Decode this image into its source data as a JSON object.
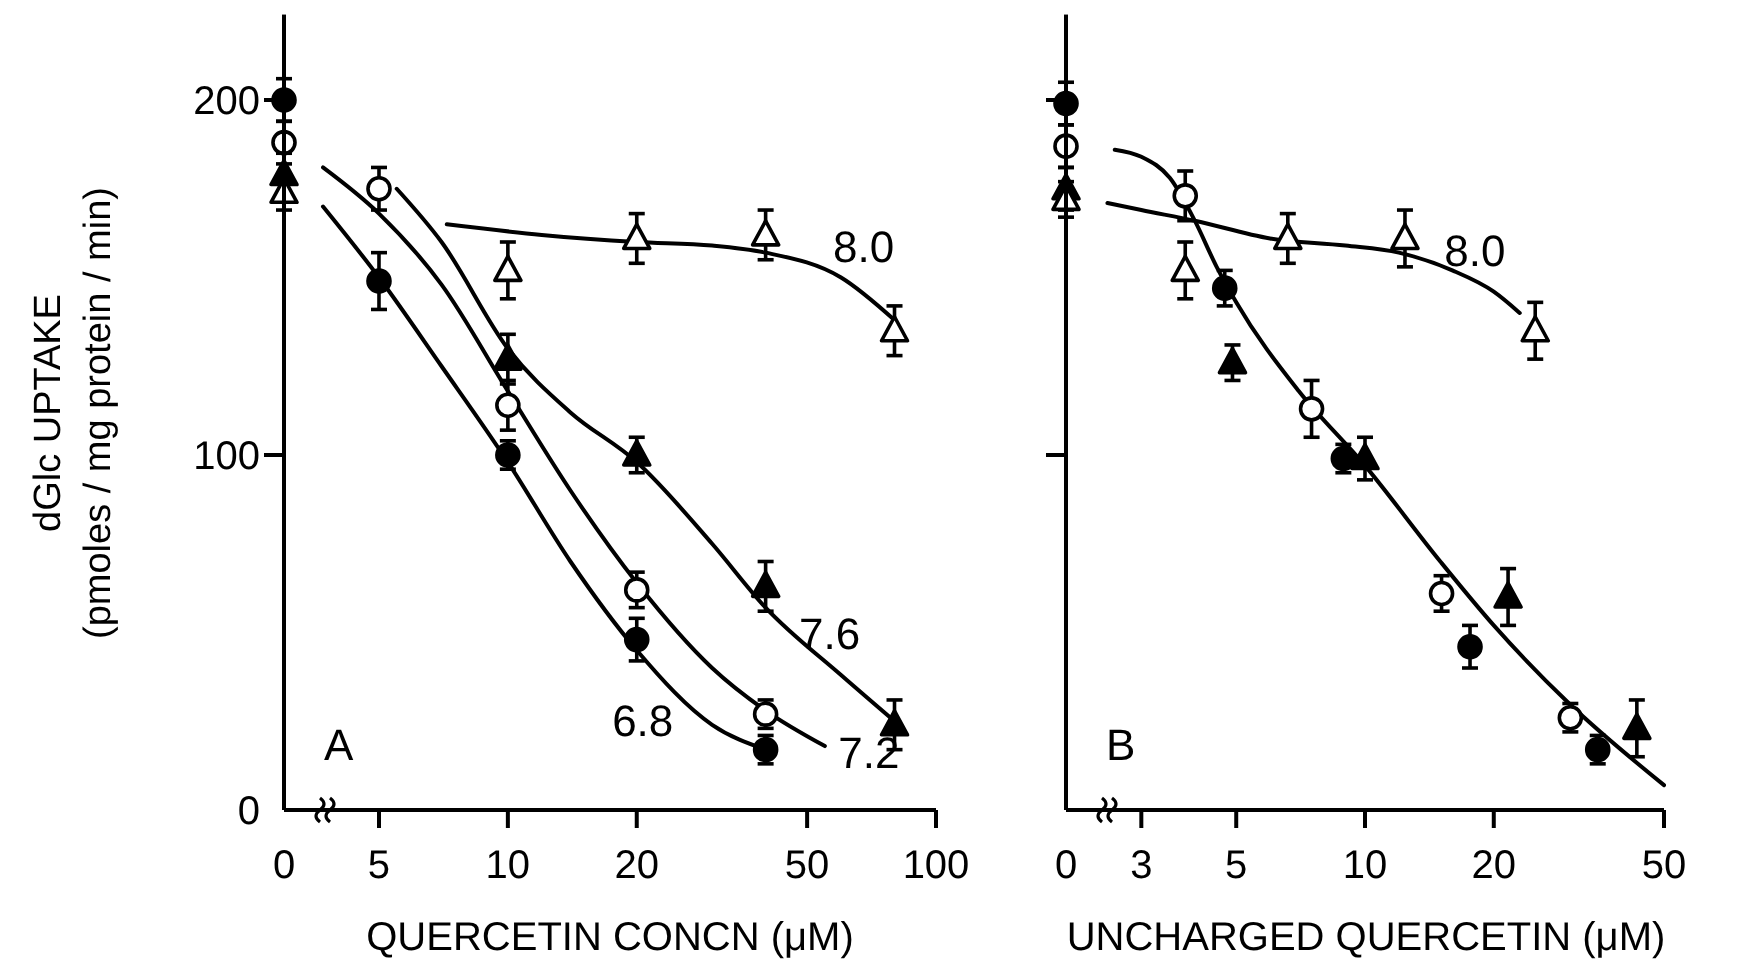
{
  "chart_data": [
    {
      "type": "scatter",
      "categories": [
        "0"
      ],
      "ylim": [
        0,
        224
      ],
      "tick_labels": "x",
      "series": [
        {
          "color": "#000000",
          "marker": "circle",
          "values": [
            200
          ],
          "errors": [
            6
          ]
        },
        {
          "color": "#ffffff",
          "marker": "circle",
          "values": [
            188
          ],
          "errors": [
            6
          ]
        },
        {
          "color": "#000000",
          "marker": "triangle",
          "values": [
            179
          ],
          "errors": [
            6
          ]
        },
        {
          "color": "#ffffff",
          "marker": "triangle",
          "values": [
            174
          ],
          "errors": [
            5
          ]
        }
      ]
    },
    {
      "type": "scatter",
      "xlabel": "QUERCETIN CONCN (μM)",
      "ylabel": "dGlc UPTAKE\n(pmoles / mg protein / min)",
      "log": "x",
      "xlim": [
        3,
        100
      ],
      "ylim": [
        0,
        224
      ],
      "xticks": [
        5,
        10,
        20,
        50,
        100
      ],
      "yticks": [
        0,
        100,
        200
      ],
      "annotations": [
        "A",
        {
          "text": "8.0",
          "x": 40,
          "y": 157
        },
        {
          "text": "7.6",
          "x": 40,
          "y": 57
        },
        {
          "text": "7.2",
          "x": 55,
          "y": 18
        },
        {
          "text": "6.8",
          "x": 20,
          "y": 45
        }
      ],
      "series": [
        {
          "type": "line",
          "color": "#000000",
          "x": [
            7.2,
            12,
            20,
            30,
            40,
            60,
            80
          ],
          "values": [
            165,
            162,
            160,
            159,
            157,
            150,
            138
          ]
        },
        {
          "type": "line",
          "color": "#000000",
          "x": [
            5.5,
            7,
            10,
            14,
            20,
            30,
            40,
            60,
            80
          ],
          "values": [
            175,
            160,
            130,
            112,
            98,
            75,
            57,
            38,
            25
          ]
        },
        {
          "type": "line",
          "color": "#000000",
          "x": [
            3.7,
            5,
            7,
            10,
            14,
            20,
            30,
            40,
            55
          ],
          "values": [
            181,
            168,
            148,
            118,
            90,
            64,
            40,
            28,
            18
          ]
        },
        {
          "type": "line",
          "color": "#000000",
          "x": [
            3.7,
            5,
            7,
            10,
            14,
            20,
            30,
            40
          ],
          "values": [
            170,
            150,
            125,
            98,
            70,
            45,
            24,
            17
          ]
        },
        {
          "color": "#000000",
          "marker": "circle",
          "x": [
            5,
            10,
            20,
            40
          ],
          "values": [
            149,
            100,
            48,
            17
          ],
          "errors": [
            8,
            4,
            6,
            4
          ]
        },
        {
          "color": "#ffffff",
          "marker": "circle",
          "x": [
            5,
            10,
            20,
            40
          ],
          "values": [
            175,
            114,
            62,
            27
          ],
          "errors": [
            6,
            7,
            5,
            4
          ]
        },
        {
          "color": "#000000",
          "marker": "triangle",
          "x": [
            10,
            20,
            40,
            80
          ],
          "values": [
            127,
            100,
            63,
            24
          ],
          "errors": [
            7,
            5,
            7,
            7
          ]
        },
        {
          "color": "#ffffff",
          "marker": "triangle",
          "x": [
            10,
            20,
            40,
            80
          ],
          "values": [
            152,
            161,
            162,
            135
          ],
          "errors": [
            8,
            7,
            7,
            7
          ]
        }
      ]
    },
    {
      "type": "scatter",
      "categories": [
        "0"
      ],
      "ylim": [
        0,
        224
      ],
      "tick_labels": "x",
      "series": [
        {
          "color": "#000000",
          "marker": "circle",
          "values": [
            199
          ],
          "errors": [
            6
          ]
        },
        {
          "color": "#ffffff",
          "marker": "circle",
          "values": [
            187
          ],
          "errors": [
            6
          ]
        },
        {
          "color": "#000000",
          "marker": "triangle",
          "values": [
            175
          ],
          "errors": [
            6
          ]
        },
        {
          "color": "#ffffff",
          "marker": "triangle",
          "values": [
            172
          ],
          "errors": [
            5
          ]
        }
      ]
    },
    {
      "type": "scatter",
      "xlabel": "UNCHARGED QUERCETIN (μM)",
      "log": "x",
      "xlim": [
        2,
        50
      ],
      "ylim": [
        0,
        224
      ],
      "xticks": [
        3,
        5,
        10,
        20,
        50
      ],
      "yticks": [
        0,
        100,
        200
      ],
      "tick_labels": "x",
      "annotations": [
        "B",
        {
          "text": "8.0",
          "x": 12,
          "y": 157
        }
      ],
      "series": [
        {
          "type": "line",
          "color": "#000000",
          "x": [
            2.5,
            3,
            4,
            6,
            9,
            12,
            16,
            20,
            23
          ],
          "values": [
            171,
            169,
            166,
            161,
            159,
            157,
            152,
            146,
            140
          ]
        },
        {
          "type": "line",
          "color": "#000000",
          "x": [
            2.6,
            3,
            3.5,
            4,
            4.5,
            5,
            7,
            10,
            15,
            20,
            30,
            50
          ],
          "values": [
            186,
            184,
            178,
            166,
            153,
            143,
            118,
            97,
            70,
            52,
            30,
            7
          ]
        },
        {
          "color": "#000000",
          "marker": "circle",
          "x": [
            4.7,
            8.9,
            17.6,
            35
          ],
          "values": [
            147,
            99,
            46,
            17
          ],
          "errors": [
            5,
            4,
            6,
            4
          ]
        },
        {
          "color": "#ffffff",
          "marker": "circle",
          "x": [
            3.8,
            7.5,
            15.1,
            30.2
          ],
          "values": [
            173,
            113,
            61,
            26
          ],
          "errors": [
            7,
            8,
            5,
            4
          ]
        },
        {
          "color": "#000000",
          "marker": "triangle",
          "x": [
            4.9,
            10,
            21.6,
            43.2
          ],
          "values": [
            126,
            99,
            60,
            23
          ],
          "errors": [
            5,
            6,
            8,
            8
          ]
        },
        {
          "color": "#ffffff",
          "marker": "triangle",
          "x": [
            3.8,
            6.6,
            12.4,
            25
          ],
          "values": [
            152,
            161,
            161,
            135
          ],
          "errors": [
            8,
            7,
            8,
            8
          ]
        }
      ]
    }
  ]
}
